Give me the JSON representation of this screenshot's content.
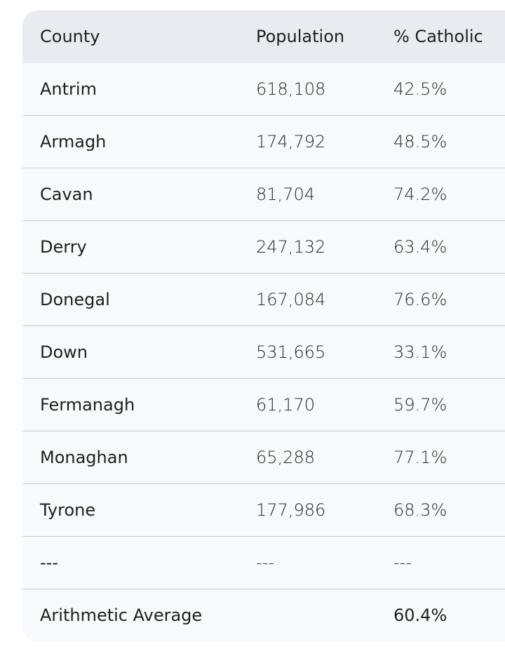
{
  "table": {
    "header": [
      "County",
      "Population",
      "% Catholic"
    ],
    "rows": [
      [
        "Antrim",
        "618,108",
        "42.5%"
      ],
      [
        "Armagh",
        "174,792",
        "48.5%"
      ],
      [
        "Cavan",
        "81,704",
        "74.2%"
      ],
      [
        "Derry",
        "247,132",
        "63.4%"
      ],
      [
        "Donegal",
        "167,084",
        "76.6%"
      ],
      [
        "Down",
        "531,665",
        "33.1%"
      ],
      [
        "Fermanagh",
        "61,170",
        "59.7%"
      ],
      [
        "Monaghan",
        "65,288",
        "77.1%"
      ],
      [
        "Tyrone",
        "177,986",
        "68.3%"
      ],
      [
        "---",
        "---",
        "---"
      ]
    ],
    "footer": {
      "label": "Arithmetic Average",
      "catholic": "60.4%"
    }
  }
}
